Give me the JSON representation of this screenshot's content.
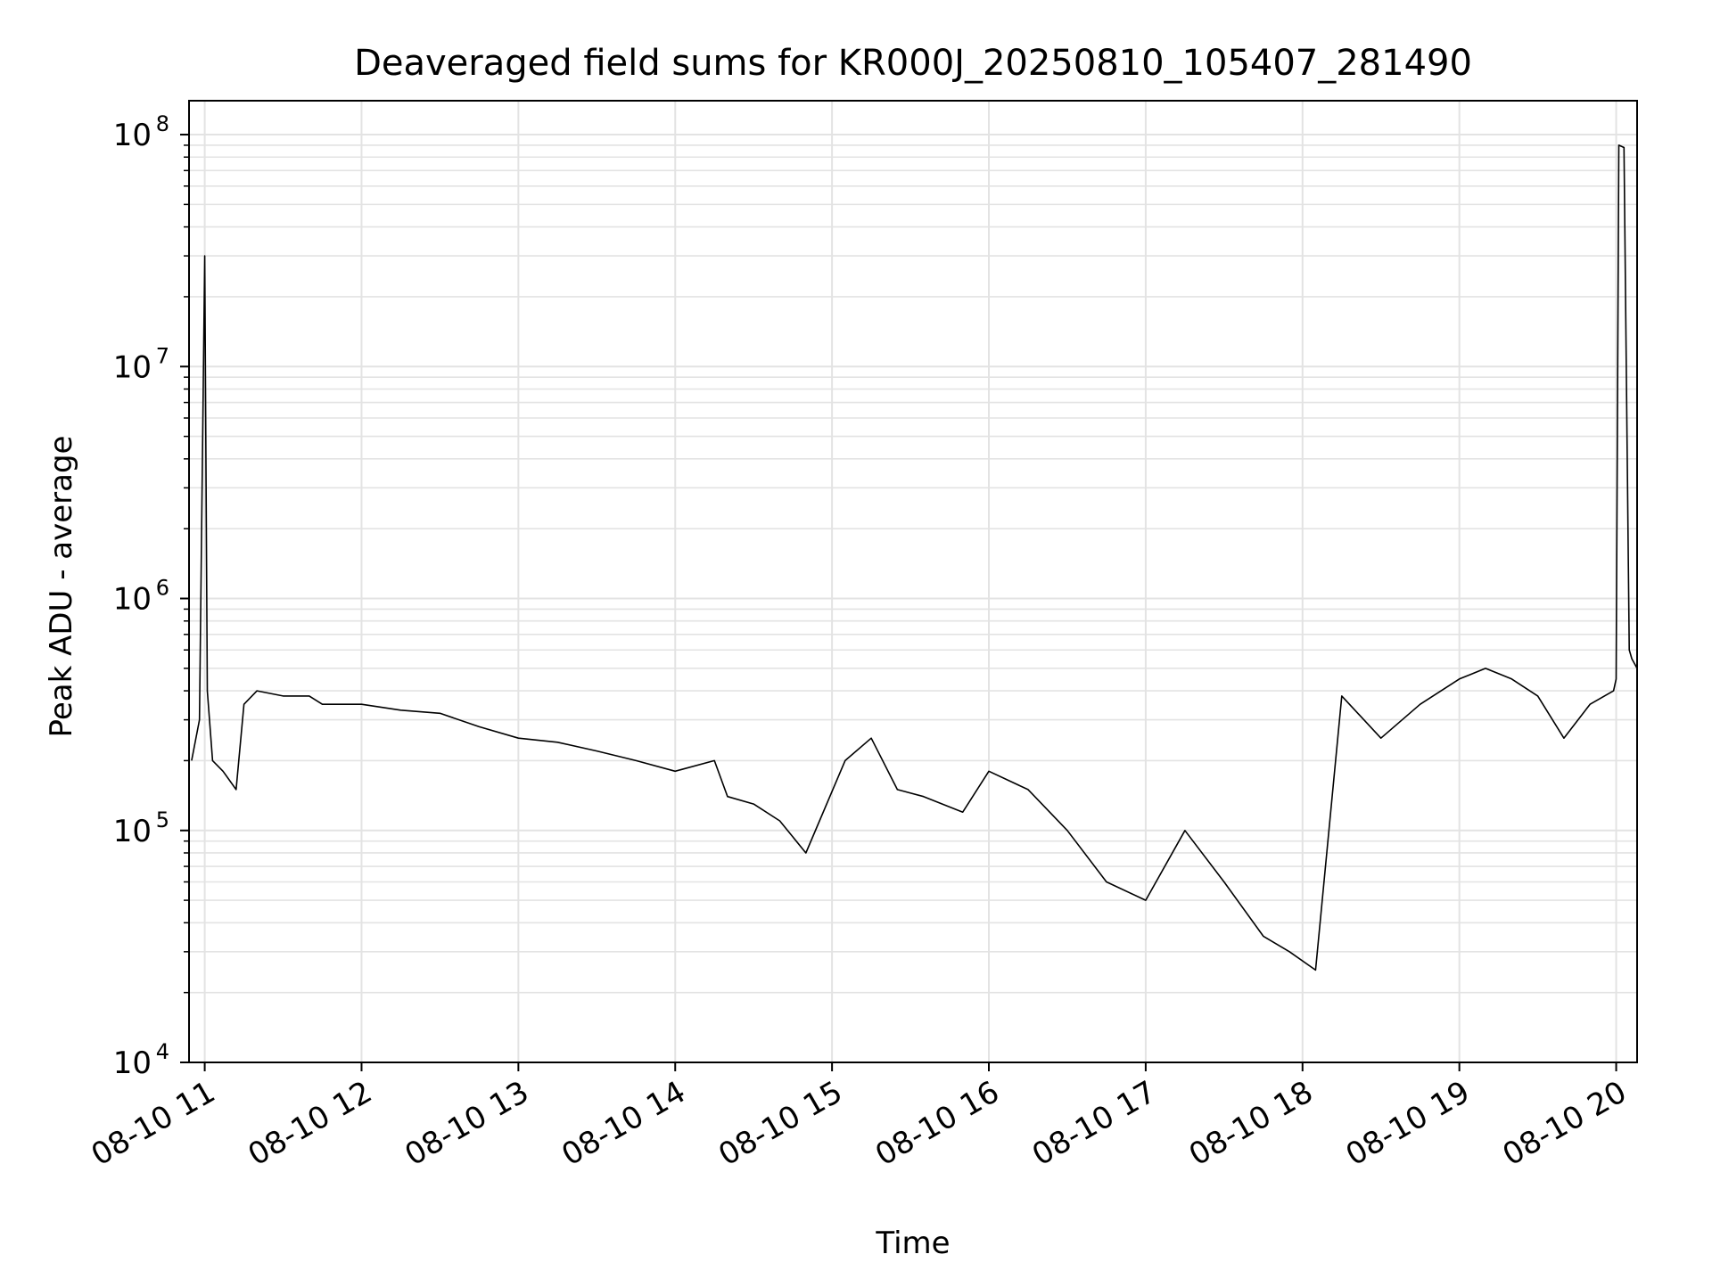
{
  "chart_data": {
    "type": "line",
    "title": "Deaveraged field sums for KR000J_20250810_105407_281490",
    "xlabel": "Time",
    "ylabel": "Peak ADU - average",
    "yscale": "log",
    "ylim": [
      10000,
      140000000
    ],
    "xlim": [
      "2025-08-10 10:54",
      "2025-08-10 20:08"
    ],
    "grid": true,
    "line_color": "#000000",
    "x_ticks": [
      {
        "t": "2025-08-10 11:00",
        "label": "08-10 11"
      },
      {
        "t": "2025-08-10 12:00",
        "label": "08-10 12"
      },
      {
        "t": "2025-08-10 13:00",
        "label": "08-10 13"
      },
      {
        "t": "2025-08-10 14:00",
        "label": "08-10 14"
      },
      {
        "t": "2025-08-10 15:00",
        "label": "08-10 15"
      },
      {
        "t": "2025-08-10 16:00",
        "label": "08-10 16"
      },
      {
        "t": "2025-08-10 17:00",
        "label": "08-10 17"
      },
      {
        "t": "2025-08-10 18:00",
        "label": "08-10 18"
      },
      {
        "t": "2025-08-10 19:00",
        "label": "08-10 19"
      },
      {
        "t": "2025-08-10 20:00",
        "label": "08-10 20"
      }
    ],
    "y_ticks": [
      {
        "value": 10000,
        "base": "10",
        "exp": "4"
      },
      {
        "value": 100000,
        "base": "10",
        "exp": "5"
      },
      {
        "value": 1000000,
        "base": "10",
        "exp": "6"
      },
      {
        "value": 10000000,
        "base": "10",
        "exp": "7"
      },
      {
        "value": 100000000,
        "base": "10",
        "exp": "8"
      }
    ],
    "series": [
      {
        "x": [
          "2025-08-10 10:55",
          "2025-08-10 10:58",
          "2025-08-10 11:00",
          "2025-08-10 11:01",
          "2025-08-10 11:03",
          "2025-08-10 11:07",
          "2025-08-10 11:12",
          "2025-08-10 11:15",
          "2025-08-10 11:20",
          "2025-08-10 11:30",
          "2025-08-10 11:40",
          "2025-08-10 11:45",
          "2025-08-10 12:00",
          "2025-08-10 12:15",
          "2025-08-10 12:30",
          "2025-08-10 12:45",
          "2025-08-10 13:00",
          "2025-08-10 13:15",
          "2025-08-10 13:30",
          "2025-08-10 13:45",
          "2025-08-10 14:00",
          "2025-08-10 14:15",
          "2025-08-10 14:20",
          "2025-08-10 14:30",
          "2025-08-10 14:40",
          "2025-08-10 14:50",
          "2025-08-10 15:05",
          "2025-08-10 15:15",
          "2025-08-10 15:25",
          "2025-08-10 15:35",
          "2025-08-10 15:50",
          "2025-08-10 16:00",
          "2025-08-10 16:15",
          "2025-08-10 16:30",
          "2025-08-10 16:45",
          "2025-08-10 17:00",
          "2025-08-10 17:15",
          "2025-08-10 17:30",
          "2025-08-10 17:45",
          "2025-08-10 17:55",
          "2025-08-10 18:05",
          "2025-08-10 18:15",
          "2025-08-10 18:30",
          "2025-08-10 18:45",
          "2025-08-10 19:00",
          "2025-08-10 19:10",
          "2025-08-10 19:20",
          "2025-08-10 19:30",
          "2025-08-10 19:40",
          "2025-08-10 19:50",
          "2025-08-10 19:59",
          "2025-08-10 20:00",
          "2025-08-10 20:01",
          "2025-08-10 20:03",
          "2025-08-10 20:05",
          "2025-08-10 20:06",
          "2025-08-10 20:08"
        ],
        "y": [
          200000,
          300000,
          30000000,
          400000,
          200000,
          180000,
          150000,
          350000,
          400000,
          380000,
          380000,
          350000,
          350000,
          330000,
          320000,
          280000,
          250000,
          240000,
          220000,
          200000,
          180000,
          200000,
          140000,
          130000,
          110000,
          80000,
          200000,
          250000,
          150000,
          140000,
          120000,
          180000,
          150000,
          100000,
          60000,
          50000,
          100000,
          60000,
          35000,
          30000,
          25000,
          380000,
          250000,
          350000,
          450000,
          500000,
          450000,
          380000,
          250000,
          350000,
          400000,
          450000,
          90000000,
          88000000,
          600000,
          550000,
          500000
        ]
      }
    ]
  }
}
